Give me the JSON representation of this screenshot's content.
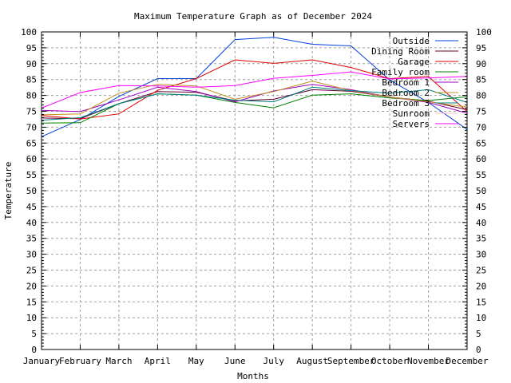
{
  "chart_data": {
    "type": "line",
    "title": "Maximum Temperature Graph as of December 2024",
    "xlabel": "Months",
    "ylabel": "Temperature",
    "categories": [
      "January",
      "February",
      "March",
      "April",
      "May",
      "June",
      "July",
      "August",
      "September",
      "October",
      "November",
      "December"
    ],
    "ylim": [
      0,
      100
    ],
    "yticks": [
      0,
      5,
      10,
      15,
      20,
      25,
      30,
      35,
      40,
      45,
      50,
      55,
      60,
      65,
      70,
      75,
      80,
      85,
      90,
      95,
      100
    ],
    "ytick_labels": [
      "0",
      "5",
      "10",
      "15",
      "20",
      "25",
      "30",
      "35",
      "40",
      "45",
      "50",
      "55",
      "60",
      "65",
      "70",
      "75",
      "80",
      "85",
      "90",
      "95",
      "100"
    ],
    "grid": true,
    "legend_position": "top-right",
    "series": [
      {
        "name": "Outside",
        "color": "#0040e0",
        "values": [
          67.0,
          72.4,
          79.7,
          85.3,
          85.3,
          97.6,
          98.3,
          96.1,
          95.6,
          84.9,
          77.8,
          69.3
        ]
      },
      {
        "name": "Dining Room",
        "color": "#600030",
        "values": [
          72.9,
          72.7,
          77.4,
          81.2,
          81.0,
          78.3,
          78.8,
          81.8,
          81.3,
          79.5,
          78.2,
          75.5
        ]
      },
      {
        "name": "Garage",
        "color": "#e00000",
        "values": [
          73.7,
          72.6,
          74.2,
          81.6,
          85.3,
          91.2,
          90.1,
          91.2,
          88.8,
          85.3,
          86.0,
          74.9
        ]
      },
      {
        "name": "Family room",
        "color": "#008000",
        "values": [
          71.3,
          71.4,
          77.4,
          80.5,
          80.1,
          77.8,
          76.1,
          80.1,
          80.5,
          79.2,
          78.4,
          79.6
        ]
      },
      {
        "name": "Bedroom 1",
        "color": "#a000c0",
        "values": [
          75.3,
          74.9,
          78.6,
          82.6,
          81.2,
          78.0,
          81.4,
          83.5,
          81.8,
          79.5,
          77.8,
          74.4
        ]
      },
      {
        "name": "Bedroom 2",
        "color": "#c09020",
        "values": [
          73.9,
          74.2,
          80.7,
          83.5,
          83.0,
          78.8,
          81.2,
          84.5,
          81.5,
          79.5,
          78.0,
          76.3
        ]
      },
      {
        "name": "Bedroom 3",
        "color": "#008080",
        "values": [
          72.2,
          73.0,
          77.4,
          80.5,
          80.1,
          78.5,
          78.0,
          82.6,
          81.5,
          80.7,
          81.8,
          77.8
        ]
      },
      {
        "name": "Sunroom",
        "color": "#ffc0c0",
        "values": []
      },
      {
        "name": "Servers",
        "color": "#ff00ff",
        "values": [
          76.0,
          80.9,
          83.1,
          83.0,
          82.6,
          83.1,
          85.4,
          86.3,
          87.4,
          85.2,
          85.5,
          86.0
        ]
      }
    ]
  }
}
